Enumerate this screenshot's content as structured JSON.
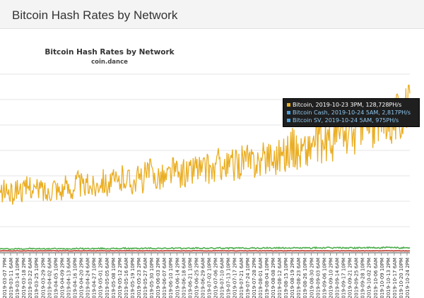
{
  "header": {
    "title": "Bitcoin Hash Rates by Network"
  },
  "chart_data": {
    "type": "line",
    "title": "Bitcoin Hash Rates by Network",
    "subtitle": "coin.dance",
    "xlabel": "",
    "ylabel": "",
    "legend": "none",
    "grid": true,
    "tick_labels": [
      "2019-03-07 7PM",
      "2019-03-11 6AM",
      "2019-03-14 10PM",
      "2019-03-18 2PM",
      "2019-03-22 6AM",
      "2019-03-25 10PM",
      "2019-03-29 2PM",
      "2019-04-02 6AM",
      "2019-04-05 10PM",
      "2019-04-09 2PM",
      "2019-04-13 6AM",
      "2019-04-16 10PM",
      "2019-04-20 2PM",
      "2019-04-24 6AM",
      "2019-04-27 10PM",
      "2019-05-01 2PM",
      "2019-05-05 6AM",
      "2019-05-08 10PM",
      "2019-05-12 2PM",
      "2019-05-16 6AM",
      "2019-05-19 10PM",
      "2019-05-23 2PM",
      "2019-05-27 6AM",
      "2019-05-30 10PM",
      "2019-06-03 2PM",
      "2019-06-07 6AM",
      "2019-06-10 10PM",
      "2019-06-14 2PM",
      "2019-06-18 6AM",
      "2019-06-21 10PM",
      "2019-06-25 2PM",
      "2019-06-29 6AM",
      "2019-07-02 10PM",
      "2019-07-06 2PM",
      "2019-07-10 6AM",
      "2019-07-13 10PM",
      "2019-07-17 2PM",
      "2019-07-21 6AM",
      "2019-07-24 10PM",
      "2019-07-28 2PM",
      "2019-08-01 6AM",
      "2019-08-04 10PM",
      "2019-08-08 2PM",
      "2019-08-12 6AM",
      "2019-08-15 10PM",
      "2019-08-19 2PM",
      "2019-08-23 6AM",
      "2019-08-26 10PM",
      "2019-08-30 2PM",
      "2019-09-03 6AM",
      "2019-09-06 10PM",
      "2019-09-10 2PM",
      "2019-09-14 6AM",
      "2019-09-17 10PM",
      "2019-09-21 2PM",
      "2019-09-25 6AM",
      "2019-09-28 10PM",
      "2019-10-02 2PM",
      "2019-10-06 6AM",
      "2019-10-09 10PM",
      "2019-10-13 2PM",
      "2019-10-17 6AM",
      "2019-10-20 10PM",
      "2019-10-24 2PM"
    ],
    "ylim": [
      0,
      145000
    ],
    "series": [
      {
        "name": "Bitcoin",
        "color": "#eaae24",
        "values": [
          47000,
          51000,
          46000,
          53000,
          49000,
          55000,
          50000,
          52000,
          47000,
          56000,
          50000,
          53000,
          51000,
          58000,
          52000,
          55000,
          53000,
          61000,
          55000,
          57000,
          56000,
          63000,
          57000,
          60000,
          59000,
          66000,
          61000,
          63000,
          60000,
          68000,
          62000,
          65000,
          64000,
          71000,
          66000,
          68000,
          66000,
          74000,
          68000,
          72000,
          70000,
          78000,
          72000,
          75000,
          73000,
          81000,
          76000,
          80000,
          79000,
          87000,
          81000,
          84000,
          83000,
          92000,
          86000,
          90000,
          89000,
          99000,
          93000,
          96000,
          97000,
          106000,
          100000,
          103000,
          104000,
          114000,
          108000,
          112000,
          110000,
          118000
        ]
      },
      {
        "name": "Bitcoin Cash",
        "color": "#4cae4c",
        "values": [
          2600,
          2700,
          2500,
          2800,
          2600,
          2900,
          2700,
          2800,
          2600,
          2900,
          2700,
          2800,
          2700,
          3000,
          2800,
          2900,
          2800,
          3000,
          2800,
          2900,
          2900,
          3100,
          2900,
          3000,
          3000,
          3200,
          3000,
          3100,
          3000,
          3200,
          3000,
          3100,
          3100,
          3300,
          3100,
          3200,
          3100,
          3300,
          3100,
          3200,
          3200,
          3400,
          3200,
          3300,
          3200,
          3400,
          3300,
          3400,
          3300,
          3500,
          3300,
          3400,
          3300,
          3500,
          3400,
          3500,
          3400,
          3600,
          3400,
          3500,
          3400,
          3600,
          3500,
          3600,
          3500,
          3700,
          3500,
          3600,
          3500,
          3600
        ]
      },
      {
        "name": "Bitcoin SV",
        "color": "#c0392b",
        "values": [
          1000,
          1100,
          950,
          1050,
          1000,
          1100,
          1000,
          1050,
          950,
          1100,
          1000,
          1050,
          1000,
          1100,
          1000,
          1050,
          1000,
          1100,
          1000,
          1050,
          1000,
          1100,
          1000,
          1050,
          1000,
          1100,
          1000,
          1050,
          1000,
          1100,
          1000,
          1050,
          1000,
          1100,
          1000,
          1050,
          1000,
          1100,
          1000,
          1050,
          1000,
          1100,
          1000,
          1050,
          1000,
          1100,
          1000,
          1050,
          1000,
          1100,
          1000,
          1050,
          1000,
          1100,
          1000,
          1050,
          1000,
          1100,
          1000,
          1050,
          1000,
          1100,
          1000,
          1050,
          1000,
          1100,
          1000,
          1050,
          1000,
          1050
        ]
      }
    ],
    "tooltip": [
      {
        "series": "Bitcoin",
        "text": "Bitcoin, 2019-10-23 3PM, 128,728PH/s",
        "color": "#eaae24",
        "text_color": "#ffffff"
      },
      {
        "series": "Bitcoin Cash",
        "text": "Bitcoin Cash, 2019-10-24 5AM, 2,817PH/s",
        "color": "#4a9fd8",
        "text_color": "#8fc7ef"
      },
      {
        "series": "Bitcoin SV",
        "text": "Bitcoin SV, 2019-10-24 5AM, 975PH/s",
        "color": "#4a9fd8",
        "text_color": "#8fc7ef"
      }
    ]
  }
}
